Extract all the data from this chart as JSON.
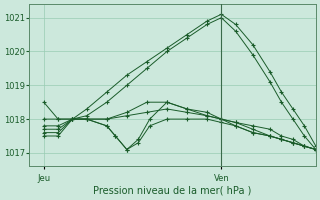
{
  "background_color": "#cce8dc",
  "grid_color": "#99ccb3",
  "line_color": "#1a5c2a",
  "marker": "+",
  "title": "Pression niveau de la mer( hPa )",
  "xlabel_jeu": "Jeu",
  "xlabel_ven": "Ven",
  "ylim": [
    1016.6,
    1021.4
  ],
  "yticks": [
    1017,
    1018,
    1019,
    1020,
    1021
  ],
  "xlim": [
    0,
    1.0
  ],
  "jeu_tick": 0.05,
  "ven_tick": 0.67,
  "ven_line": 0.67,
  "series": [
    {
      "x": [
        0.05,
        0.1,
        0.15,
        0.2,
        0.27,
        0.34,
        0.41,
        0.48,
        0.55,
        0.62,
        0.67,
        0.72,
        0.78,
        0.84,
        0.88,
        0.92,
        0.96,
        1.0
      ],
      "y": [
        1018.5,
        1018.0,
        1018.0,
        1018.3,
        1018.8,
        1019.3,
        1019.7,
        1020.1,
        1020.5,
        1020.9,
        1021.1,
        1020.8,
        1020.2,
        1019.4,
        1018.8,
        1018.3,
        1017.8,
        1017.2
      ]
    },
    {
      "x": [
        0.05,
        0.1,
        0.15,
        0.2,
        0.27,
        0.34,
        0.41,
        0.48,
        0.55,
        0.62,
        0.67,
        0.72,
        0.78,
        0.84,
        0.88,
        0.92,
        0.96,
        1.0
      ],
      "y": [
        1018.0,
        1018.0,
        1018.0,
        1018.1,
        1018.5,
        1019.0,
        1019.5,
        1020.0,
        1020.4,
        1020.8,
        1021.0,
        1020.6,
        1019.9,
        1019.1,
        1018.5,
        1018.0,
        1017.5,
        1017.1
      ]
    },
    {
      "x": [
        0.05,
        0.1,
        0.15,
        0.2,
        0.27,
        0.34,
        0.41,
        0.48,
        0.55,
        0.62,
        0.67,
        0.72,
        0.78,
        0.84,
        0.88,
        0.92,
        0.96,
        1.0
      ],
      "y": [
        1017.8,
        1017.8,
        1018.0,
        1018.0,
        1018.0,
        1018.2,
        1018.5,
        1018.5,
        1018.3,
        1018.2,
        1018.0,
        1017.9,
        1017.8,
        1017.7,
        1017.5,
        1017.4,
        1017.2,
        1017.1
      ]
    },
    {
      "x": [
        0.05,
        0.1,
        0.15,
        0.2,
        0.27,
        0.3,
        0.34,
        0.38,
        0.42,
        0.48,
        0.55,
        0.62,
        0.67,
        0.72,
        0.78,
        0.84,
        0.88,
        0.92,
        0.96,
        1.0
      ],
      "y": [
        1017.6,
        1017.6,
        1018.0,
        1018.0,
        1017.8,
        1017.5,
        1017.1,
        1017.4,
        1018.0,
        1018.5,
        1018.3,
        1018.1,
        1018.0,
        1017.8,
        1017.6,
        1017.5,
        1017.4,
        1017.3,
        1017.2,
        1017.1
      ]
    },
    {
      "x": [
        0.05,
        0.1,
        0.15,
        0.2,
        0.27,
        0.3,
        0.34,
        0.38,
        0.42,
        0.48,
        0.55,
        0.62,
        0.67,
        0.72,
        0.78,
        0.84,
        0.88,
        0.92,
        0.96,
        1.0
      ],
      "y": [
        1017.5,
        1017.5,
        1018.0,
        1018.0,
        1017.8,
        1017.5,
        1017.1,
        1017.3,
        1017.8,
        1018.0,
        1018.0,
        1018.0,
        1017.9,
        1017.8,
        1017.6,
        1017.5,
        1017.4,
        1017.3,
        1017.2,
        1017.1
      ]
    },
    {
      "x": [
        0.05,
        0.1,
        0.15,
        0.2,
        0.27,
        0.34,
        0.41,
        0.48,
        0.55,
        0.62,
        0.67,
        0.72,
        0.78,
        0.84,
        0.88,
        0.92,
        0.96,
        1.0
      ],
      "y": [
        1017.7,
        1017.7,
        1018.0,
        1018.0,
        1018.0,
        1018.1,
        1018.2,
        1018.3,
        1018.2,
        1018.1,
        1018.0,
        1017.9,
        1017.7,
        1017.5,
        1017.4,
        1017.3,
        1017.2,
        1017.1
      ]
    }
  ]
}
